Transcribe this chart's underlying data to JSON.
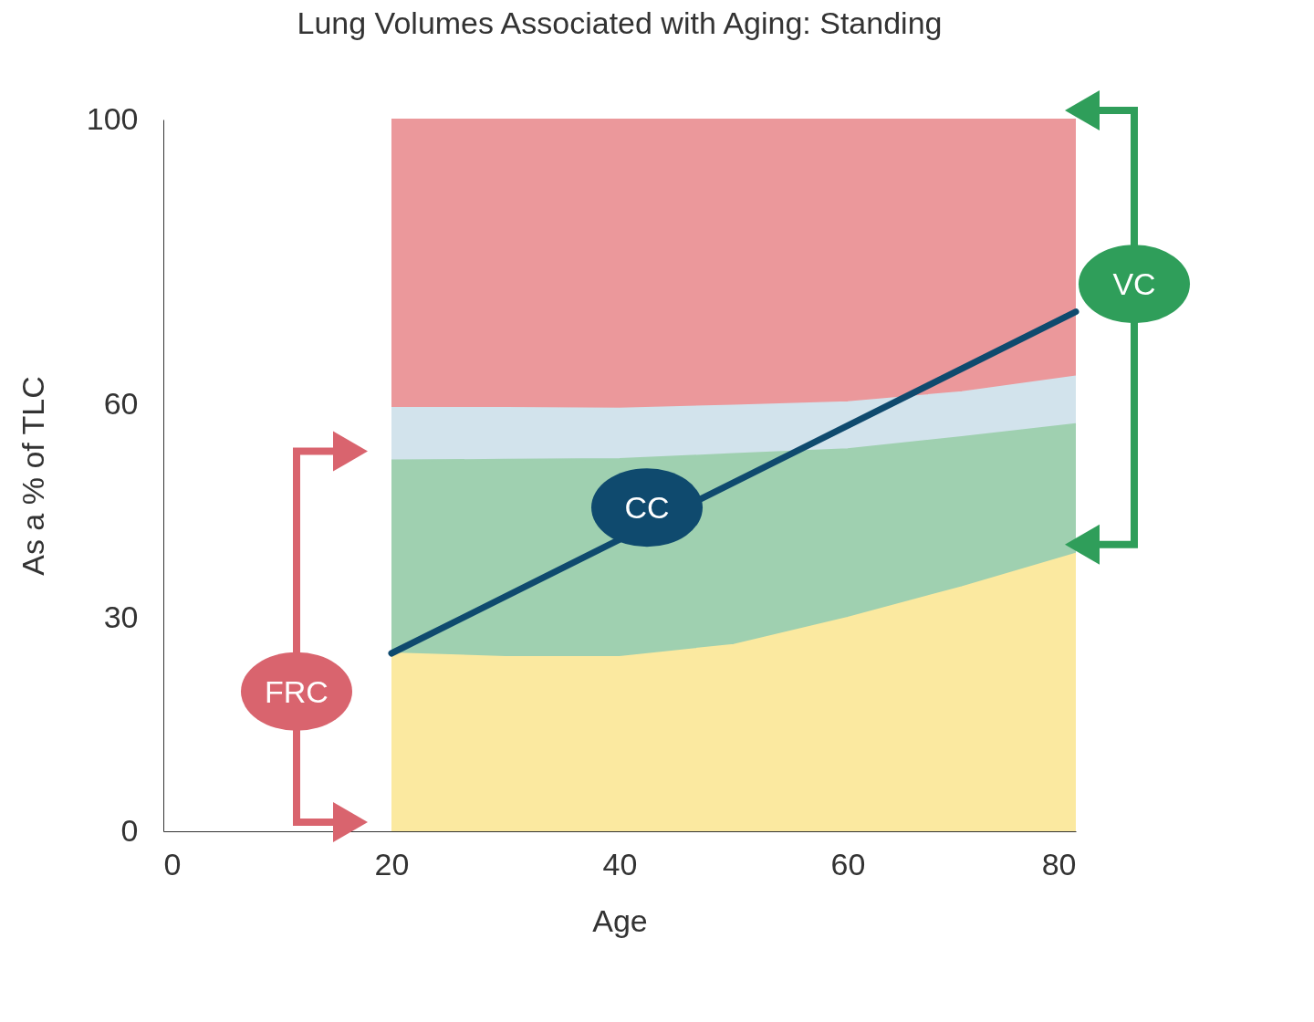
{
  "chart_data": {
    "type": "area",
    "title": "Lung Volumes Associated with Aging: Standing",
    "xlabel": "Age",
    "ylabel": "As a % of TLC",
    "stacked": true,
    "x": [
      20,
      30,
      40,
      50,
      60,
      70,
      80
    ],
    "series": [
      {
        "color": "#fbe9a0",
        "values": [
          25,
          24.5,
          24.5,
          26.2,
          30,
          34.3,
          39
        ]
      },
      {
        "color": "#9fd0b0",
        "values": [
          27.1,
          27.7,
          27.8,
          26.8,
          23.7,
          21.1,
          18.2
        ]
      },
      {
        "color": "#d2e3ec",
        "values": [
          7.4,
          7.3,
          7.1,
          6.8,
          6.6,
          6.3,
          6.7
        ]
      },
      {
        "color": "#eb989b",
        "values": [
          40.5,
          40.5,
          40.6,
          40.2,
          39.7,
          38.3,
          36.1
        ]
      },
      {
        "type": "line",
        "name": "CC",
        "color": "#0f4a6e",
        "x": [
          20,
          80
        ],
        "values": [
          25,
          73
        ]
      }
    ],
    "xlim": [
      0,
      80
    ],
    "xticks": [
      0,
      20,
      40,
      60,
      80
    ],
    "ylim": [
      0,
      100
    ],
    "yticks": [
      0,
      30,
      60,
      100
    ],
    "annotations": [
      "FRC",
      "VC"
    ]
  }
}
